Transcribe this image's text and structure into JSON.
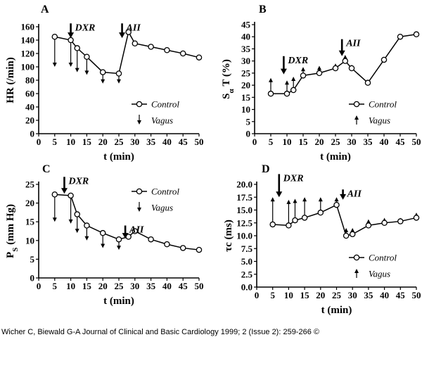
{
  "source_credit": "Wicher C, Biewald G-A Journal of Clinical and Basic Cardiology 1999; 2 (Issue 2): 259-266 ©",
  "chart_data": [
    {
      "type": "line",
      "panel_label": "A",
      "xlabel": "t (min)",
      "ylabel": "HR (/min)",
      "ylabel_sub": "",
      "ylabel_tail": "",
      "xlim": [
        0,
        50
      ],
      "ylim": [
        0,
        160
      ],
      "xticks": [
        0,
        5,
        10,
        15,
        20,
        25,
        30,
        35,
        40,
        45,
        50
      ],
      "yticks": [
        0,
        20,
        40,
        60,
        80,
        100,
        120,
        140,
        160
      ],
      "grid": false,
      "legend_position": "bottom-right",
      "series": [
        {
          "name": "Control",
          "x": [
            5,
            10,
            12,
            15,
            20,
            25,
            28,
            30,
            35,
            40,
            45,
            50
          ],
          "y": [
            145,
            140,
            128,
            115,
            92,
            90,
            152,
            135,
            130,
            125,
            120,
            114
          ]
        },
        {
          "name": "Vagus",
          "x": [
            5,
            10,
            12,
            15,
            20,
            25
          ],
          "from": [
            145,
            140,
            128,
            115,
            92,
            90
          ],
          "to": [
            100,
            100,
            92,
            88,
            75,
            75
          ]
        }
      ],
      "annotations": [
        {
          "text": "DXR",
          "x": 10,
          "y_from": 165,
          "y_to": 143
        },
        {
          "text": "AII",
          "x": 26,
          "y_from": 165,
          "y_to": 143
        }
      ]
    },
    {
      "type": "line",
      "panel_label": "B",
      "xlabel": "t (min)",
      "ylabel": "S",
      "ylabel_sub": "α",
      "ylabel_tail": " T (%)",
      "xlim": [
        0,
        50
      ],
      "ylim": [
        0,
        45
      ],
      "xticks": [
        0,
        5,
        10,
        15,
        20,
        25,
        30,
        35,
        40,
        45,
        50
      ],
      "yticks": [
        0,
        5,
        10,
        15,
        20,
        25,
        30,
        35,
        40,
        45
      ],
      "grid": false,
      "legend_position": "bottom-right",
      "series": [
        {
          "name": "Control",
          "x": [
            5,
            10,
            12,
            15,
            20,
            25,
            28,
            30,
            35,
            40,
            45,
            50
          ],
          "y": [
            16.5,
            16.5,
            18,
            24,
            25,
            27,
            30,
            27,
            21,
            30.5,
            40,
            41
          ]
        },
        {
          "name": "Vagus",
          "x": [
            5,
            10,
            12,
            15,
            20,
            25,
            28,
            30
          ],
          "from": [
            16.5,
            16.5,
            18,
            24,
            25,
            27,
            30,
            27
          ],
          "to": [
            23,
            22,
            23.5,
            27.5,
            28,
            29,
            32.5,
            28.5
          ]
        }
      ],
      "annotations": [
        {
          "text": "DXR",
          "x": 9,
          "y_from": 32,
          "y_to": 24.5
        },
        {
          "text": "AII",
          "x": 27,
          "y_from": 39,
          "y_to": 32
        }
      ]
    },
    {
      "type": "line",
      "panel_label": "C",
      "xlabel": "t (min)",
      "ylabel": "P",
      "ylabel_sub": "S",
      "ylabel_tail": " (mm Hg)",
      "xlim": [
        0,
        50
      ],
      "ylim": [
        0,
        25
      ],
      "xticks": [
        0,
        5,
        10,
        15,
        20,
        25,
        30,
        35,
        40,
        45,
        50
      ],
      "yticks": [
        0,
        5,
        10,
        15,
        20,
        25
      ],
      "grid": false,
      "legend_position": "top-right",
      "series": [
        {
          "name": "Control",
          "x": [
            5,
            10,
            12,
            15,
            20,
            25,
            28,
            30,
            35,
            40,
            45,
            50
          ],
          "y": [
            22.3,
            22,
            17,
            14,
            12,
            10.3,
            11,
            12.5,
            10.3,
            9,
            8,
            7.5
          ]
        },
        {
          "name": "Vagus",
          "x": [
            5,
            10,
            12,
            15,
            20,
            25
          ],
          "from": [
            22.3,
            22,
            17,
            14,
            12,
            10.3
          ],
          "to": [
            15,
            14.5,
            12,
            10,
            8,
            7.5
          ]
        }
      ],
      "annotations": [
        {
          "text": "DXR",
          "x": 8,
          "y_from": 27,
          "y_to": 22.5
        },
        {
          "text": "AII",
          "x": 27,
          "y_from": 14,
          "y_to": 10.5
        }
      ]
    },
    {
      "type": "line",
      "panel_label": "D",
      "xlabel": "t (min)",
      "ylabel": "τc (ms)",
      "ylabel_sub": "",
      "ylabel_tail": "",
      "xlim": [
        0,
        50
      ],
      "ylim": [
        0,
        20
      ],
      "xticks": [
        0,
        5,
        10,
        15,
        20,
        25,
        30,
        35,
        40,
        45,
        50
      ],
      "yticks": [
        0.0,
        2.5,
        5.0,
        7.5,
        10.0,
        12.5,
        15.0,
        17.5,
        20.0
      ],
      "ytick_labels": [
        "0.0",
        "2.5",
        "5.0",
        "7.5",
        "10.0",
        "12.5",
        "15.0",
        "17.5",
        "20.0"
      ],
      "grid": false,
      "legend_position": "bottom-right",
      "series": [
        {
          "name": "Control",
          "x": [
            5,
            10,
            12,
            15,
            20,
            25,
            28,
            30,
            35,
            40,
            45,
            50
          ],
          "y": [
            12.2,
            12,
            13,
            13.5,
            14.5,
            16,
            10,
            10.3,
            12,
            12.5,
            12.8,
            13.5
          ]
        },
        {
          "name": "Vagus",
          "x": [
            5,
            10,
            12,
            15,
            20,
            25,
            28,
            30,
            35,
            40,
            45,
            50
          ],
          "from": [
            12.2,
            12,
            13,
            13.5,
            14.5,
            16,
            10,
            10.3,
            12,
            12.5,
            12.8,
            13.5
          ],
          "to": [
            17.5,
            17,
            17.2,
            17.5,
            17.5,
            17.5,
            11.5,
            11.5,
            13.2,
            13.5,
            13.5,
            14.5
          ]
        }
      ],
      "annotations": [
        {
          "text": "DXR",
          "x": 7,
          "y_from": 22,
          "y_to": 17.5
        },
        {
          "text": "AII",
          "x": 27,
          "y_from": 19,
          "y_to": 17
        }
      ]
    }
  ]
}
